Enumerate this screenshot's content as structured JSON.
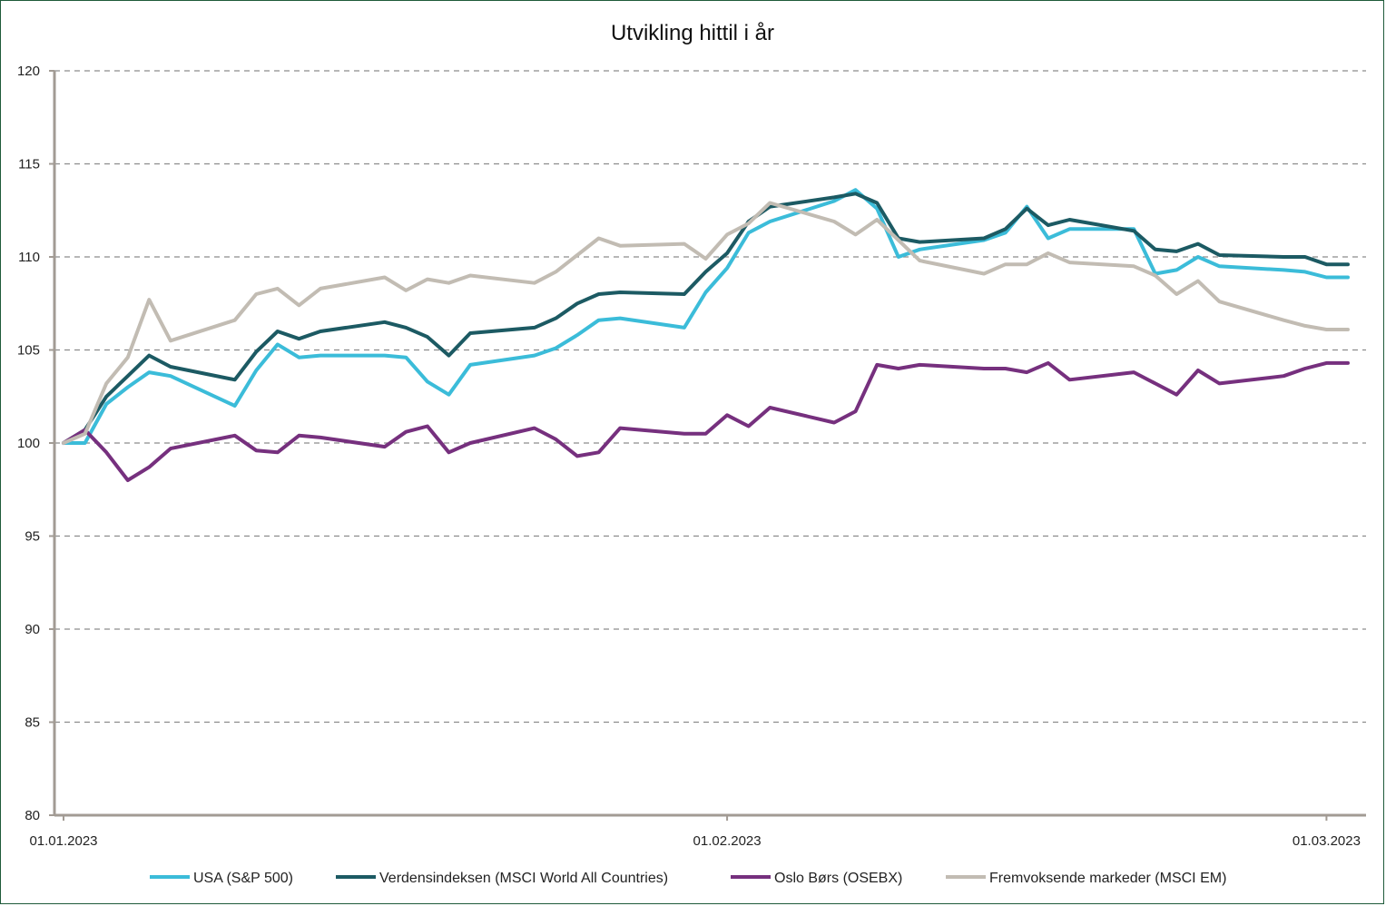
{
  "chart_data": {
    "type": "line",
    "title": "Utvikling hittil i år",
    "xlabel": "",
    "ylabel": "",
    "ylim": [
      80,
      120
    ],
    "yticks": [
      80,
      85,
      90,
      95,
      100,
      105,
      110,
      115,
      120
    ],
    "xlim": [
      "2023-01-01",
      "2023-03-02"
    ],
    "xticks": [
      {
        "date": "2023-01-01",
        "label": "01.01.2023"
      },
      {
        "date": "2023-02-01",
        "label": "01.02.2023"
      },
      {
        "date": "2023-03-01",
        "label": "01.03.2023"
      }
    ],
    "grid": "horizontal-dashed",
    "legend_position": "bottom",
    "x": [
      "2023-01-01",
      "2023-01-02",
      "2023-01-03",
      "2023-01-04",
      "2023-01-05",
      "2023-01-06",
      "2023-01-09",
      "2023-01-10",
      "2023-01-11",
      "2023-01-12",
      "2023-01-13",
      "2023-01-16",
      "2023-01-17",
      "2023-01-18",
      "2023-01-19",
      "2023-01-20",
      "2023-01-23",
      "2023-01-24",
      "2023-01-25",
      "2023-01-26",
      "2023-01-27",
      "2023-01-30",
      "2023-01-31",
      "2023-02-01",
      "2023-02-02",
      "2023-02-03",
      "2023-02-06",
      "2023-02-07",
      "2023-02-08",
      "2023-02-09",
      "2023-02-10",
      "2023-02-13",
      "2023-02-14",
      "2023-02-15",
      "2023-02-16",
      "2023-02-17",
      "2023-02-20",
      "2023-02-21",
      "2023-02-22",
      "2023-02-23",
      "2023-02-24",
      "2023-02-27",
      "2023-02-28",
      "2023-03-01",
      "2023-03-02"
    ],
    "series": [
      {
        "name": "USA (S&P 500)",
        "color": "#3bbcd9",
        "values": [
          100.0,
          100.0,
          102.1,
          103.0,
          103.8,
          103.6,
          102.0,
          103.9,
          105.3,
          104.6,
          104.7,
          104.7,
          104.6,
          103.3,
          102.6,
          104.2,
          104.7,
          105.1,
          105.8,
          106.6,
          106.7,
          106.2,
          108.1,
          109.4,
          111.3,
          111.9,
          113.0,
          113.6,
          112.6,
          110.0,
          110.4,
          110.9,
          111.3,
          112.7,
          111.0,
          111.5,
          111.5,
          109.1,
          109.3,
          110.0,
          109.5,
          109.3,
          109.2,
          108.9,
          108.9
        ]
      },
      {
        "name": "Verdensindeksen (MSCI World All Countries)",
        "color": "#1c5a63",
        "values": [
          100.0,
          100.7,
          102.5,
          103.6,
          104.7,
          104.1,
          103.4,
          104.9,
          106.0,
          105.6,
          106.0,
          106.5,
          106.2,
          105.7,
          104.7,
          105.9,
          106.2,
          106.7,
          107.5,
          108.0,
          108.1,
          108.0,
          109.2,
          110.2,
          111.9,
          112.7,
          113.2,
          113.4,
          112.9,
          111.0,
          110.8,
          111.0,
          111.5,
          112.6,
          111.7,
          112.0,
          111.4,
          110.4,
          110.3,
          110.7,
          110.1,
          110.0,
          110.0,
          109.6,
          109.6
        ]
      },
      {
        "name": "Oslo Børs (OSEBX)",
        "color": "#76307e",
        "values": [
          100.0,
          100.7,
          99.5,
          98.0,
          98.7,
          99.7,
          100.4,
          99.6,
          99.5,
          100.4,
          100.3,
          99.8,
          100.6,
          100.9,
          99.5,
          100.0,
          100.8,
          100.2,
          99.3,
          99.5,
          100.8,
          100.5,
          100.5,
          101.5,
          100.9,
          101.9,
          101.1,
          101.7,
          104.2,
          104.0,
          104.2,
          104.0,
          104.0,
          103.8,
          104.3,
          103.4,
          103.8,
          103.2,
          102.6,
          103.9,
          103.2,
          103.6,
          104.0,
          104.3,
          104.3
        ]
      },
      {
        "name": "Fremvoksende markeder (MSCI EM)",
        "color": "#c2bcb3",
        "values": [
          100.0,
          100.5,
          103.2,
          104.6,
          107.7,
          105.5,
          106.6,
          108.0,
          108.3,
          107.4,
          108.3,
          108.9,
          108.2,
          108.8,
          108.6,
          109.0,
          108.6,
          109.2,
          110.1,
          111.0,
          110.6,
          110.7,
          109.9,
          111.2,
          111.8,
          112.9,
          111.9,
          111.2,
          112.0,
          110.9,
          109.8,
          109.1,
          109.6,
          109.6,
          110.2,
          109.7,
          109.5,
          109.0,
          108.0,
          108.7,
          107.6,
          106.6,
          106.3,
          106.1,
          106.1
        ]
      }
    ]
  }
}
